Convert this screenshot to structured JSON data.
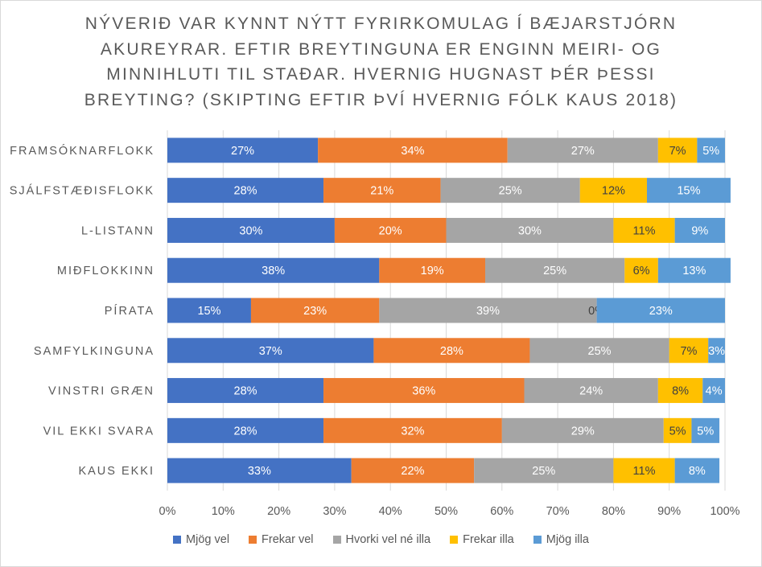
{
  "chart_data": {
    "type": "bar",
    "orientation": "horizontal",
    "stacked": true,
    "title_lines": [
      "NÝVERIÐ VAR KYNNT NÝTT FYRIRKOMULAG Í BÆJARSTJÓRN",
      "AKUREYRAR. EFTIR BREYTINGUNA ER ENGINN MEIRI- OG",
      "MINNIHLUTI TIL STAÐAR. HVERNIG HUGNAST ÞÉR ÞESSI",
      "BREYTING? (SKIPTING EFTIR ÞVÍ HVERNIG FÓLK KAUS 2018)"
    ],
    "categories": [
      "FRAMSÓKNARFLOKK",
      "SJÁLFSTÆÐISFLOKK",
      "L-LISTANN",
      "MIÐFLOKKINN",
      "PÍRATA",
      "SAMFYLKINGUNA",
      "VINSTRI GRÆN",
      "VIL EKKI SVARA",
      "KAUS EKKI"
    ],
    "xlim": [
      0,
      100
    ],
    "x_ticks": [
      "0%",
      "10%",
      "20%",
      "30%",
      "40%",
      "50%",
      "60%",
      "70%",
      "80%",
      "90%",
      "100%"
    ],
    "grid": true,
    "legend_position": "bottom",
    "series": [
      {
        "name": "Mjög vel",
        "color": "#4472c4",
        "label_color": "#ffffff",
        "values": [
          27,
          28,
          30,
          38,
          15,
          37,
          28,
          28,
          33
        ],
        "labels": [
          "27%",
          "28%",
          "30%",
          "38%",
          "15%",
          "37%",
          "28%",
          "28%",
          "33%"
        ]
      },
      {
        "name": "Frekar vel",
        "color": "#ed7d31",
        "label_color": "#ffffff",
        "values": [
          34,
          21,
          20,
          19,
          23,
          28,
          36,
          32,
          22
        ],
        "labels": [
          "34%",
          "21%",
          "20%",
          "19%",
          "23%",
          "28%",
          "36%",
          "32%",
          "22%"
        ]
      },
      {
        "name": "Hvorki vel né illa",
        "color": "#a5a5a5",
        "label_color": "#ffffff",
        "values": [
          27,
          25,
          30,
          25,
          39,
          25,
          24,
          29,
          25
        ],
        "labels": [
          "27%",
          "25%",
          "30%",
          "25%",
          "39%",
          "25%",
          "24%",
          "29%",
          "25%"
        ]
      },
      {
        "name": "Frekar illa",
        "color": "#ffc000",
        "label_color": "#404040",
        "values": [
          7,
          12,
          11,
          6,
          0,
          7,
          8,
          5,
          11
        ],
        "labels": [
          "7%",
          "12%",
          "11%",
          "6%",
          "0%",
          "7%",
          "8%",
          "5%",
          "11%"
        ]
      },
      {
        "name": "Mjög illa",
        "color": "#5b9bd5",
        "label_color": "#ffffff",
        "values": [
          5,
          15,
          9,
          13,
          23,
          3,
          4,
          5,
          8
        ],
        "labels": [
          "5%",
          "15%",
          "9%",
          "13%",
          "23%",
          "3%",
          "4%",
          "5%",
          "8%"
        ]
      }
    ]
  }
}
